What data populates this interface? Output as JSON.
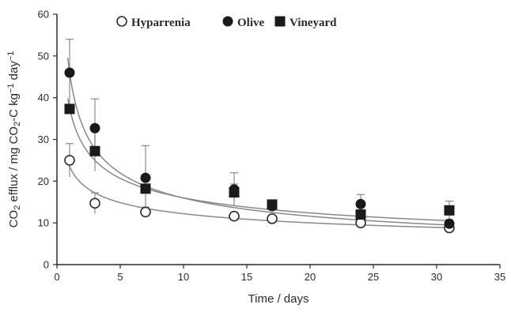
{
  "chart_data": {
    "type": "scatter",
    "xlabel": "Time / days",
    "ylabel": {
      "parts": [
        {
          "t": "CO",
          "sub": false
        },
        {
          "t": "2",
          "sub": true
        },
        {
          "t": " efflux / mg CO",
          "sub": false
        },
        {
          "t": "2",
          "sub": true
        },
        {
          "t": "-C kg",
          "sub": false
        },
        {
          "t": "−1",
          "sup": true
        },
        {
          "t": " day",
          "sub": false
        },
        {
          "t": "−1",
          "sup": true
        }
      ]
    },
    "xlim": [
      0,
      35
    ],
    "ylim": [
      0,
      60
    ],
    "xticks": [
      0,
      5,
      10,
      15,
      20,
      25,
      30,
      35
    ],
    "yticks": [
      0,
      10,
      20,
      30,
      40,
      50,
      60
    ],
    "grid": false,
    "legend_position": "top",
    "x": [
      1,
      3,
      7,
      14,
      17,
      24,
      31
    ],
    "series": [
      {
        "name": "Hyparrenia",
        "marker": "open-circle",
        "color": "#2b2b2b",
        "values": [
          25,
          14.7,
          12.6,
          11.6,
          11.0,
          10.0,
          8.8
        ],
        "err": [
          4,
          2.5,
          1.2,
          0.8,
          0.8,
          0.6,
          0.6
        ]
      },
      {
        "name": "Olive",
        "marker": "filled-circle",
        "color": "#1a1a1a",
        "values": [
          46,
          32.7,
          20.8,
          18.0,
          14.0,
          14.5,
          9.8
        ],
        "err": [
          8,
          7,
          7.7,
          4.0,
          1.2,
          2.3,
          1.0
        ]
      },
      {
        "name": "Vineyard",
        "marker": "filled-square",
        "color": "#1a1a1a",
        "values": [
          37.3,
          27.2,
          18.2,
          17.3,
          14.4,
          12.0,
          13.0
        ],
        "err": [
          0.8,
          4.8,
          0.8,
          2.0,
          1.0,
          0.8,
          2.2
        ]
      }
    ],
    "fit_curves": [
      {
        "series": "Hyparrenia",
        "type": "power",
        "a": 23.5,
        "b": -0.285
      },
      {
        "series": "Olive",
        "type": "power",
        "a": 46,
        "b": -0.46
      },
      {
        "series": "Vineyard",
        "type": "power",
        "a": 37.5,
        "b": -0.37
      }
    ],
    "colors": {
      "axis": "#2b2b2b",
      "curve": "#888888",
      "errorbar": "#888888"
    }
  }
}
